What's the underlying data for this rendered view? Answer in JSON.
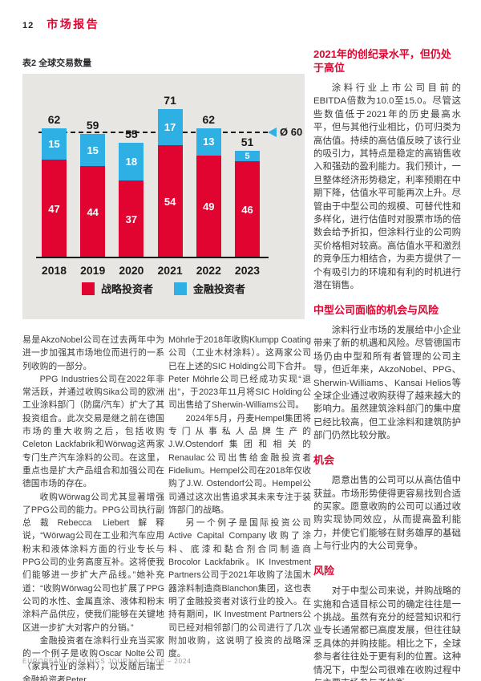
{
  "page": {
    "number": "12",
    "section_title": "市场报告",
    "footer": "EUROPEAN COATINGS JOURNAL 07/08 – 2024"
  },
  "colors": {
    "red": "#e20430",
    "blue": "#2eb0e5",
    "chart_background": "#e8e6e3"
  },
  "chart_data": {
    "type": "bar",
    "stacked": true,
    "title": "表2 全球交易数量",
    "categories": [
      "2018",
      "2019",
      "2020",
      "2021",
      "2022",
      "2023"
    ],
    "series": [
      {
        "name": "战略投资者",
        "color": "#e20430",
        "values": [
          47,
          44,
          37,
          54,
          49,
          46
        ]
      },
      {
        "name": "金融投资者",
        "color": "#2eb0e5",
        "values": [
          15,
          15,
          18,
          17,
          13,
          5
        ]
      }
    ],
    "totals": [
      62,
      59,
      55,
      71,
      62,
      51
    ],
    "average_line": {
      "value": 60,
      "label": "Ø 60"
    },
    "xlabel": "",
    "ylabel": "",
    "ylim": [
      0,
      75
    ],
    "grid": false,
    "legend_position": "bottom"
  },
  "columns": {
    "left": [
      {
        "indent": false,
        "text": "易是AkzoNobel公司在过去两年中为进一步加强其市场地位而进行的一系列收购的一部分。"
      },
      {
        "indent": true,
        "text": "PPG Industries公司在2022年非常活跃，并通过收购Sika公司的欧洲工业涂料部门（防腐/汽车）扩大了其投资组合。此次交易是继之前在德国市场的重大收购之后，包括收购Celeton Lackfabrik和Wörwag这两家专门生产汽车涂料的公司。在这里，重点也是扩大产品组合和加强公司在德国市场的存在。"
      },
      {
        "indent": true,
        "text": "收购Wörwag公司尤其显著增强了PPG公司的能力。PPG公司执行副总裁Rebecca Liebert解释说，“Wörwag公司在工业和汽车应用粉末和液体涂料方面的行业专长与PPG公司的业务高度互补。这将使我们能够进一步扩大产品线。”她补充道：“收购Wörwag公司也扩展了PPG公司的水性、金属直涂、液体和粉末涂料产品供应，使我们能够在关键地区进一步扩大对客户的分销。”"
      },
      {
        "indent": true,
        "text": "金融投资者在涂料行业充当买家的一个例子是收购Oscar Nolte公司（家具行业的涂料），以及随后瑞士金融投资者Peter"
      }
    ],
    "middle": [
      {
        "indent": false,
        "text": "Möhrle于2018年收购Klumpp Coating公司（工业木材涂料）。这两家公司已在上述的SIC Holding公司下合并。Peter Möhrle公司已经成功实现“退出”，于2023年11月将SIC Holding公司出售给了Sherwin-Williams公司。"
      },
      {
        "indent": true,
        "text": "2024年5月，丹麦Hempel集团将专门从事私人品牌生产的J.W.Ostendorf集团和相关的Renaulac公司出售给金融投资者Fidelium。Hempel公司在2018年仅收购了J.W. Ostendorf公司。Hempel公司通过这次出售追求其未来专注于装饰部门的战略。"
      },
      {
        "indent": true,
        "text": "另一个例子是国际投资公司Active Capital Company收购了涂料、底漆和黏合剂合同制造商Brocolor Lackfabrik。IK Investment Partners公司于2021年收购了法国木器涂料制造商Blanchon集团，这也表明了金融投资者对该行业的投入。在持有期间，IK Investment Partners公司已经对相邻部门的公司进行了几次附加收购，这说明了投资的战略深度。"
      }
    ],
    "right": [
      {
        "type": "heading",
        "text": "2021年的创纪录水平，但仍处于高位"
      },
      {
        "type": "para",
        "indent": true,
        "text": "涂料行业上市公司目前的EBITDA倍数为10.0至15.0。尽管这些数值低于2021年的历史最高水平，但与其他行业相比，仍可归类为高估值。持续的高估值反映了该行业的吸引力，其特点是稳定的高销售收入和强劲的盈利能力。我们预计，一旦整体经济形势稳定，利率预期在中期下降，估值水平可能再次上升。尽管由于中型公司的规模、可替代性和多样化，进行估值时对股票市场的倍数会给予折扣，但涂料行业的公司购买价格相对较高。高估值水平和激烈的竞争压力相结合，为卖方提供了一个有吸引力的环境和有利的时机进行潜在销售。"
      },
      {
        "type": "heading",
        "text": "中型公司面临的机会与风险"
      },
      {
        "type": "para",
        "indent": true,
        "text": "涂料行业市场的发展给中小企业带来了新的机遇和风险。尽管德国市场仍由中型和所有者管理的公司主导，但近年来，AkzoNobel、PPG、Sherwin-Williams、Kansai Helios等全球企业通过收购获得了越来越大的影响力。虽然建筑涂料部门的集中度已经比较高，但工业涂料和建筑防护部门仍然比较分散。"
      },
      {
        "type": "heading",
        "text": "机会"
      },
      {
        "type": "para",
        "indent": true,
        "text": "愿意出售的公司可以从高估值中获益。市场形势使得更容易找到合适的买家。愿意收购的公司可以通过收购实现协同效应，从而提高盈利能力，并使它们能够在财务雄厚的基础上与行业内的大公司竞争。"
      },
      {
        "type": "heading",
        "text": "风险"
      },
      {
        "type": "para",
        "indent": true,
        "text": "对于中型公司来说，并购战略的实施和合适目标公司的确定往往是一个挑战。虽然有充分的经营知识和行业专长通常都已高度发展，但往往缺乏具体的并购技能。相比之下，全球参与者往往处于更有利的位置。这种情况下，中型公司很难在收购过程中与主要市场参与者抗衡。"
      }
    ]
  }
}
